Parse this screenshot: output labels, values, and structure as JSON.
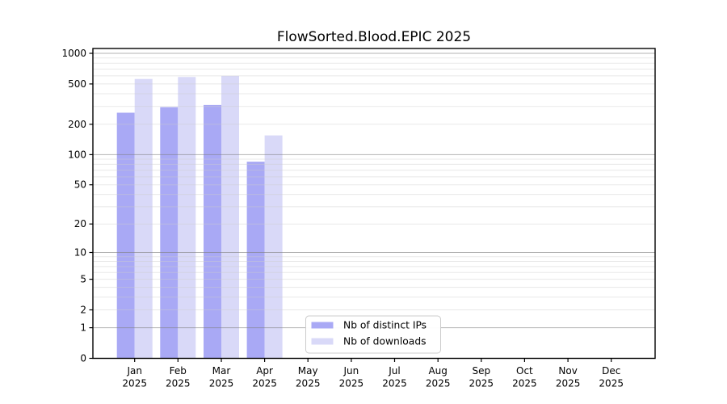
{
  "chart_data": {
    "type": "bar",
    "title": "FlowSorted.Blood.EPIC 2025",
    "categories": [
      "Jan",
      "Feb",
      "Mar",
      "Apr",
      "May",
      "Jun",
      "Jul",
      "Aug",
      "Sep",
      "Oct",
      "Nov",
      "Dec"
    ],
    "year_label": "2025",
    "series": [
      {
        "name": "Nb of distinct IPs",
        "color": "#a9a9f5",
        "values": [
          260,
          295,
          310,
          85,
          0,
          0,
          0,
          0,
          0,
          0,
          0,
          0
        ]
      },
      {
        "name": "Nb of downloads",
        "color": "#d9d9f8",
        "values": [
          560,
          585,
          600,
          155,
          0,
          0,
          0,
          0,
          0,
          0,
          0,
          0
        ]
      }
    ],
    "yscale": "log1p",
    "ylim": [
      0,
      1117
    ],
    "yticks": [
      0,
      1,
      2,
      5,
      10,
      20,
      50,
      100,
      200,
      500,
      1000
    ],
    "ytick_labels": [
      "0",
      "1",
      "2",
      "5",
      "10",
      "20",
      "50",
      "100",
      "200",
      "500",
      "1000"
    ],
    "major_gridlines": [
      1,
      10,
      100,
      1000
    ],
    "grid": "minor+major horizontal, drawn above bars",
    "legend_position": "bottom-center",
    "colors": {
      "axis": "#000000",
      "major_grid": "#808080",
      "minor_grid": "#cccccc",
      "legend_border": "#cccccc",
      "background": "#ffffff"
    }
  }
}
